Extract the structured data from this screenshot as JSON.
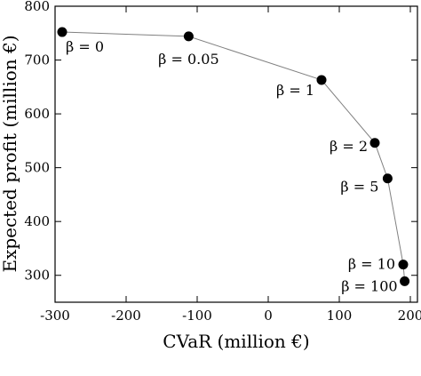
{
  "chart_data": {
    "type": "line",
    "title": "",
    "xlabel": "CVaR (million €)",
    "ylabel": "Expected profit (million €)",
    "xlim": [
      -300,
      210
    ],
    "ylim": [
      250,
      800
    ],
    "x_ticks": [
      -300,
      -200,
      -100,
      0,
      100,
      200
    ],
    "y_ticks": [
      300,
      400,
      500,
      600,
      700,
      800
    ],
    "grid": false,
    "legend": "none",
    "series": [
      {
        "line_color": "#808080",
        "marker_color": "#000000",
        "points": [
          {
            "x": -290,
            "y": 752,
            "label": "β = 0"
          },
          {
            "x": -112,
            "y": 744,
            "label": "β = 0.05"
          },
          {
            "x": 75,
            "y": 663,
            "label": "β = 1"
          },
          {
            "x": 150,
            "y": 546,
            "label": "β = 2"
          },
          {
            "x": 168,
            "y": 480,
            "label": "β = 5"
          },
          {
            "x": 190,
            "y": 320,
            "label": "β = 10"
          },
          {
            "x": 192,
            "y": 289,
            "label": "β = 100"
          }
        ]
      }
    ]
  }
}
